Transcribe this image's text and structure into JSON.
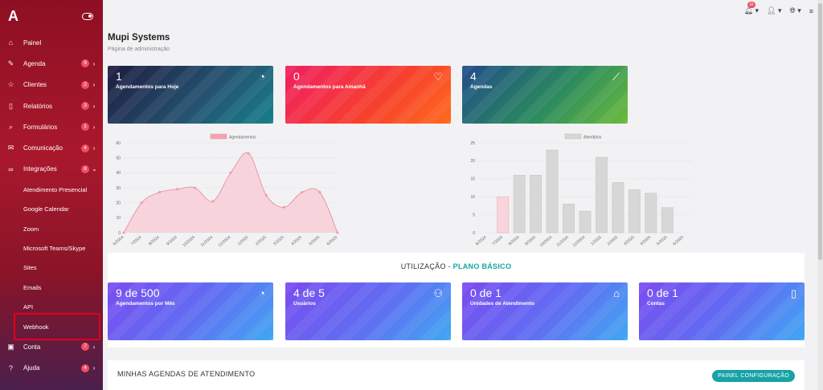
{
  "sidebar": {
    "logo": "A",
    "items": [
      {
        "label": "Painel",
        "icon": "home-icon",
        "glyph": "⌂",
        "badge": null,
        "chevron": false
      },
      {
        "label": "Agenda",
        "icon": "edit-icon",
        "glyph": "✎",
        "badge": "9",
        "chevron": true
      },
      {
        "label": "Clientes",
        "icon": "star-icon",
        "glyph": "☆",
        "badge": "2",
        "chevron": true
      },
      {
        "label": "Relatórios",
        "icon": "book-icon",
        "glyph": "▯",
        "badge": "3",
        "chevron": true
      },
      {
        "label": "Formulários",
        "icon": "search-icon",
        "glyph": "⌕",
        "badge": "1",
        "chevron": true
      },
      {
        "label": "Comunicação",
        "icon": "mail-icon",
        "glyph": "✉",
        "badge": "4",
        "chevron": true
      },
      {
        "label": "Integrações",
        "icon": "link-icon",
        "glyph": "∞",
        "badge": "8",
        "chevron": "down"
      }
    ],
    "subitems": [
      "Atendimento Presencial",
      "Google Calendar",
      "Zoom",
      "Microsoft Teams/Skype",
      "Sites",
      "Emails",
      "API",
      "Webhook"
    ],
    "bottom_items": [
      {
        "label": "Conta",
        "icon": "wallet-icon",
        "glyph": "▣",
        "badge": "7",
        "chevron": true
      },
      {
        "label": "Ajuda",
        "icon": "help-icon",
        "glyph": "?",
        "badge": "4",
        "chevron": true
      }
    ]
  },
  "topbar": {
    "notification_count": "16"
  },
  "header": {
    "title": "Mupi Systems",
    "subtitle": "Página de administração"
  },
  "top_cards": [
    {
      "value": "1",
      "label": "Agendamentos para Hoje",
      "icon": "clock-icon"
    },
    {
      "value": "0",
      "label": "Agendamentos para Amanhã",
      "icon": "lightbulb-icon"
    },
    {
      "value": "4",
      "label": "Agendas",
      "icon": "trend-icon"
    }
  ],
  "usage": {
    "title": "UTILIZAÇÃO - ",
    "plan": "PLANO BÁSICO",
    "cards": [
      {
        "value": "9 de 500",
        "label": "Agendamentos por Mês",
        "icon": "clock-icon"
      },
      {
        "value": "4 de 5",
        "label": "Usuários",
        "icon": "users-icon"
      },
      {
        "value": "0 de 1",
        "label": "Unidades de Atendimento",
        "icon": "home-icon"
      },
      {
        "value": "0 de 1",
        "label": "Contas",
        "icon": "tablet-icon"
      }
    ]
  },
  "agendas_section": {
    "title": "MINHAS AGENDAS DE ATENDIMENTO",
    "button": "PAINEL CONFIGURAÇÃO"
  },
  "chart_data": [
    {
      "type": "area",
      "legend": "Agendamentos",
      "x": [
        "6/2024",
        "7/2024",
        "8/2024",
        "9/2024",
        "10/2024",
        "11/2024",
        "12/2024",
        "1/2025",
        "2/2025",
        "3/2025",
        "4/2025",
        "5/2025",
        "6/2025"
      ],
      "values": [
        0,
        20,
        27,
        29,
        30,
        21,
        40,
        53,
        25,
        17,
        27,
        27,
        0
      ],
      "ylim": [
        0,
        60
      ],
      "yticks": [
        0,
        10,
        20,
        30,
        40,
        50,
        60
      ],
      "color": "#f4a3b4"
    },
    {
      "type": "bar",
      "legend": "Atendidos",
      "x": [
        "6/2024",
        "7/2024",
        "8/2024",
        "9/2024",
        "10/2024",
        "11/2024",
        "12/2024",
        "1/2025",
        "2/2025",
        "3/2025",
        "4/2025",
        "5/2025",
        "6/2025"
      ],
      "values": [
        0,
        10,
        16,
        16,
        23,
        8,
        6,
        21,
        14,
        12,
        11,
        7,
        0
      ],
      "ylim": [
        0,
        25
      ],
      "yticks": [
        0,
        5,
        10,
        15,
        20,
        25
      ],
      "highlight_index": 1,
      "color": "#d7d7d7",
      "highlight_color": "#f8d4dc"
    }
  ]
}
